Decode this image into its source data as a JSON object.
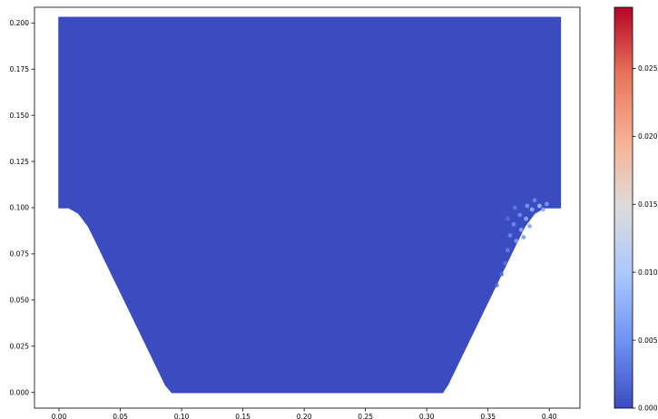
{
  "chart_data": {
    "type": "scatter",
    "title": "",
    "xlabel": "",
    "ylabel": "",
    "xlim": [
      -0.02,
      0.425
    ],
    "ylim": [
      -0.0085,
      0.2085
    ],
    "x_ticks": [
      0.0,
      0.05,
      0.1,
      0.15,
      0.2,
      0.25,
      0.3,
      0.35,
      0.4
    ],
    "x_tick_labels": [
      "0.00",
      "0.05",
      "0.10",
      "0.15",
      "0.20",
      "0.25",
      "0.30",
      "0.35",
      "0.40"
    ],
    "y_ticks": [
      0.0,
      0.025,
      0.05,
      0.075,
      0.1,
      0.125,
      0.15,
      0.175,
      0.2
    ],
    "y_tick_labels": [
      "0.000",
      "0.025",
      "0.050",
      "0.075",
      "0.100",
      "0.125",
      "0.150",
      "0.175",
      "0.200"
    ],
    "grid": false,
    "domain_outline": [
      [
        0.0,
        0.203
      ],
      [
        0.409,
        0.203
      ],
      [
        0.409,
        0.1
      ],
      [
        0.396,
        0.1
      ],
      [
        0.388,
        0.097
      ],
      [
        0.38,
        0.09
      ],
      [
        0.374,
        0.082
      ],
      [
        0.317,
        0.004
      ],
      [
        0.313,
        0.0
      ],
      [
        0.092,
        0.0
      ],
      [
        0.087,
        0.004
      ],
      [
        0.03,
        0.082
      ],
      [
        0.024,
        0.09
      ],
      [
        0.016,
        0.097
      ],
      [
        0.008,
        0.1
      ],
      [
        0.0,
        0.1
      ]
    ],
    "base_value": 0.0,
    "hotspots": [
      {
        "x": 0.392,
        "y": 0.101,
        "value": 0.0095
      },
      {
        "x": 0.386,
        "y": 0.099,
        "value": 0.0085
      },
      {
        "x": 0.381,
        "y": 0.094,
        "value": 0.0078
      },
      {
        "x": 0.377,
        "y": 0.088,
        "value": 0.0072
      },
      {
        "x": 0.373,
        "y": 0.082,
        "value": 0.0066
      },
      {
        "x": 0.382,
        "y": 0.101,
        "value": 0.0058
      },
      {
        "x": 0.376,
        "y": 0.096,
        "value": 0.0052
      },
      {
        "x": 0.371,
        "y": 0.091,
        "value": 0.0048
      },
      {
        "x": 0.368,
        "y": 0.085,
        "value": 0.0044
      },
      {
        "x": 0.366,
        "y": 0.077,
        "value": 0.004
      },
      {
        "x": 0.398,
        "y": 0.102,
        "value": 0.0062
      },
      {
        "x": 0.388,
        "y": 0.104,
        "value": 0.0045
      },
      {
        "x": 0.372,
        "y": 0.1,
        "value": 0.0032
      },
      {
        "x": 0.364,
        "y": 0.07,
        "value": 0.003
      },
      {
        "x": 0.361,
        "y": 0.064,
        "value": 0.0024
      },
      {
        "x": 0.357,
        "y": 0.058,
        "value": 0.0018
      },
      {
        "x": 0.366,
        "y": 0.094,
        "value": 0.0026
      },
      {
        "x": 0.379,
        "y": 0.084,
        "value": 0.005
      },
      {
        "x": 0.384,
        "y": 0.09,
        "value": 0.006
      },
      {
        "x": 0.395,
        "y": 0.099,
        "value": 0.007
      }
    ],
    "colorbar": {
      "colormap": "coolwarm",
      "min": 0.0,
      "max": 0.0295,
      "ticks": [
        0.0,
        0.005,
        0.01,
        0.015,
        0.02,
        0.025
      ],
      "tick_labels": [
        "0.000",
        "0.005",
        "0.010",
        "0.015",
        "0.020",
        "0.025"
      ],
      "colors": [
        "#3b4cc0",
        "#6f92f3",
        "#aac7fd",
        "#dddcdc",
        "#f7b194",
        "#e7745b",
        "#b40426"
      ]
    }
  }
}
